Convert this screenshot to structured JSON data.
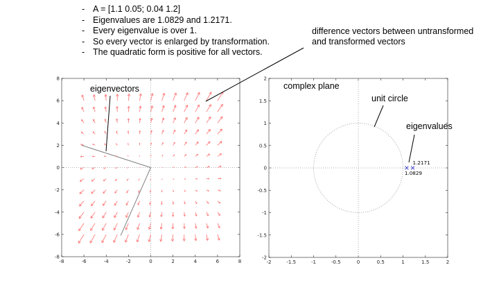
{
  "bullets": [
    "A = [1.1 0.05; 0.04 1.2]",
    "Eigenvalues are 1.0829 and 1.2171.",
    "Every eigenvalue is over 1.",
    "So every vector is enlarged by transformation.",
    "The quadratic form is positive for all vectors."
  ],
  "annotations": {
    "difference_line1": "difference vectors between untransformed",
    "difference_line2": "and transformed vectors",
    "eigenvectors": "eigenvectors",
    "complex_plane": "complex plane",
    "unit_circle": "unit circle",
    "eigenvalues": "eigenvalues"
  },
  "colors": {
    "arrow": "#ff7f7f",
    "eigenvector_line": "#808080",
    "eigenvalue_marker": "#3333cc",
    "dotted": "#999999"
  },
  "chart_data": [
    {
      "type": "quiver",
      "matrix": [
        [
          1.1,
          0.05
        ],
        [
          0.04,
          1.2
        ]
      ],
      "xlim": [
        -8,
        8
      ],
      "ylim": [
        -8,
        8
      ],
      "xticks": [
        -8,
        -6,
        -4,
        -2,
        0,
        2,
        4,
        6,
        8
      ],
      "yticks": [
        -8,
        -6,
        -4,
        -2,
        0,
        2,
        4,
        6,
        8
      ],
      "grid_points": [
        -6,
        -5,
        -4,
        -3,
        -2,
        -1,
        0,
        1,
        2,
        3,
        4,
        5,
        6
      ],
      "eigenvector_lines": [
        {
          "x": [
            0,
            -6.2
          ],
          "y": [
            0,
            2.0
          ]
        },
        {
          "x": [
            0,
            -2.7
          ],
          "y": [
            0,
            -6.1
          ]
        }
      ],
      "axes_zero_lines": "dotted"
    },
    {
      "type": "scatter",
      "xlim": [
        -2,
        2
      ],
      "ylim": [
        -2,
        2
      ],
      "xticks": [
        -2,
        -1.5,
        -1,
        -0.5,
        0,
        0.5,
        1,
        1.5,
        2
      ],
      "yticks": [
        -2,
        -1.5,
        -1,
        -0.5,
        0,
        0.5,
        1,
        1.5,
        2
      ],
      "tick_labels_x": [
        "-2",
        "-1.5",
        "-1",
        "-0.5",
        "0",
        "0.5",
        "1",
        "1.5",
        "2"
      ],
      "tick_labels_y": [
        "-2",
        "-1.5",
        "-1",
        "-0.5",
        "0",
        "0.5",
        "1",
        "1.5",
        "2"
      ],
      "unit_circle_radius": 1,
      "points": [
        {
          "x": 1.0829,
          "y": 0,
          "label": "1.0829"
        },
        {
          "x": 1.2171,
          "y": 0,
          "label": "1.2171"
        }
      ],
      "marker": "x"
    }
  ]
}
